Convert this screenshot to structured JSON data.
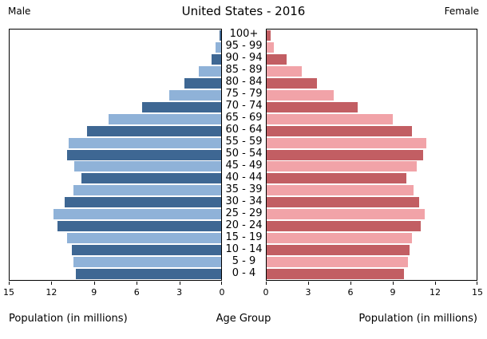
{
  "header": {
    "title": "United States - 2016",
    "left_label": "Male",
    "right_label": "Female"
  },
  "footer": {
    "left_axis_label": "Population (in millions)",
    "center_label": "Age Group",
    "right_axis_label": "Population (in millions)"
  },
  "colors": {
    "male_dark": "#3E6793",
    "male_light": "#8FB2D8",
    "female_dark": "#C25E63",
    "female_light": "#F1A3A8",
    "axis": "#000000",
    "background": "#FFFFFF"
  },
  "chart_data": {
    "type": "bar",
    "subtype": "population-pyramid",
    "title": "United States - 2016",
    "xlabel": "Population (in millions)",
    "center_axis_label": "Age Group",
    "xlim": [
      0,
      15
    ],
    "x_ticks": [
      0,
      3,
      6,
      9,
      12,
      15
    ],
    "grid": false,
    "categories": [
      "100+",
      "95 - 99",
      "90 - 94",
      "85 - 89",
      "80 - 84",
      "75 - 79",
      "70 - 74",
      "65 - 69",
      "60 - 64",
      "55 - 59",
      "50 - 54",
      "45 - 49",
      "40 - 44",
      "35 - 39",
      "30 - 34",
      "25 - 29",
      "20 - 24",
      "15 - 19",
      "10 - 14",
      "5 - 9",
      "0 - 4"
    ],
    "series": [
      {
        "name": "Male",
        "side": "left",
        "values": [
          0.1,
          0.4,
          0.7,
          1.6,
          2.6,
          3.7,
          5.6,
          8.0,
          9.5,
          10.8,
          10.9,
          10.4,
          9.9,
          10.5,
          11.1,
          11.9,
          11.6,
          10.9,
          10.6,
          10.5,
          10.3
        ]
      },
      {
        "name": "Female",
        "side": "right",
        "values": [
          0.3,
          0.5,
          1.4,
          2.5,
          3.6,
          4.8,
          6.5,
          9.0,
          10.4,
          11.4,
          11.2,
          10.7,
          10.0,
          10.5,
          10.9,
          11.3,
          11.0,
          10.4,
          10.2,
          10.1,
          9.8
        ]
      }
    ]
  }
}
